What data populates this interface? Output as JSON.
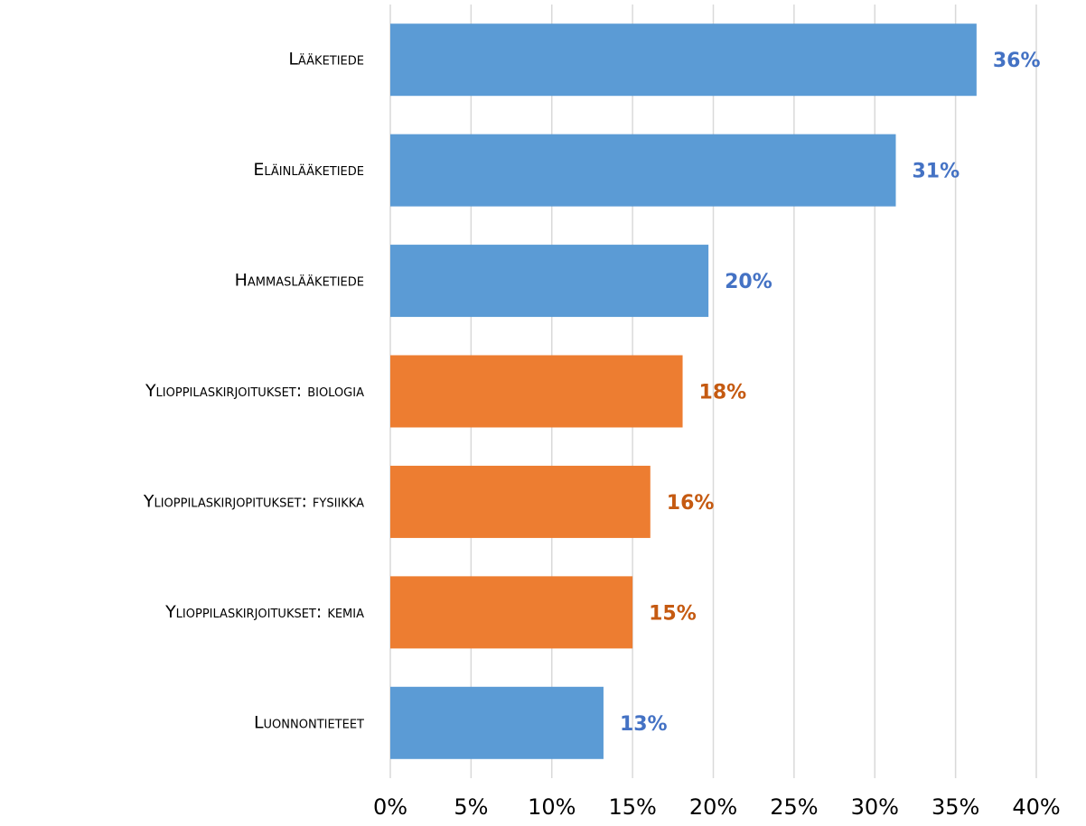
{
  "chart_data": {
    "type": "bar",
    "orientation": "horizontal",
    "categories": [
      "Lääketiede",
      "Eläinlääketiede",
      "Hammaslääketiede",
      "Ylioppilaskirjoitukset: biologia",
      "Ylioppilaskirjopitukset: fysiikka",
      "Ylioppilaskirjoitukset: kemia",
      "Luonnontieteet"
    ],
    "values": [
      36.3,
      31.3,
      19.7,
      18.1,
      16.1,
      15.0,
      13.2
    ],
    "value_labels": [
      "36%",
      "31%",
      "20%",
      "18%",
      "16%",
      "15%",
      "13%"
    ],
    "colors": [
      "#5b9bd5",
      "#5b9bd5",
      "#5b9bd5",
      "#ed7d31",
      "#ed7d31",
      "#ed7d31",
      "#5b9bd5"
    ],
    "label_colors": [
      "#4472c4",
      "#4472c4",
      "#4472c4",
      "#c55a11",
      "#c55a11",
      "#c55a11",
      "#4472c4"
    ],
    "xlim": [
      0,
      40
    ],
    "xticks": [
      {
        "value": 0,
        "label": "0%"
      },
      {
        "value": 5,
        "label": "5%"
      },
      {
        "value": 10,
        "label": "10%"
      },
      {
        "value": 15,
        "label": "15%"
      },
      {
        "value": 20,
        "label": "20%"
      },
      {
        "value": 25,
        "label": "25%"
      },
      {
        "value": 30,
        "label": "30%"
      },
      {
        "value": 35,
        "label": "35%"
      },
      {
        "value": 40,
        "label": "40%"
      }
    ],
    "grid": true
  }
}
